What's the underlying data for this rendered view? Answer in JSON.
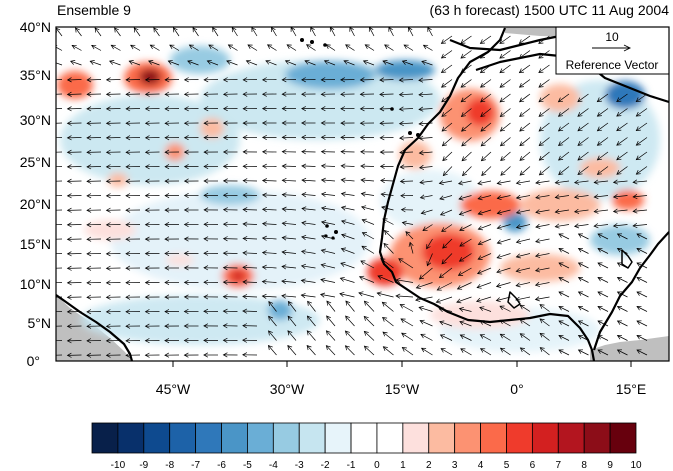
{
  "header": {
    "left_title": "Ensemble 9",
    "right_title": "(63 h forecast) 1500 UTC 11 Aug 2004"
  },
  "reference_vector": {
    "magnitude": "10",
    "label": "Reference Vector"
  },
  "map": {
    "lat_labels": [
      "40°N",
      "35°N",
      "30°N",
      "25°N",
      "20°N",
      "15°N",
      "10°N",
      "5°N",
      "0°"
    ],
    "lon_labels": [
      "45°W",
      "30°W",
      "15°W",
      "0°",
      "15°E"
    ],
    "colors": {
      "coastline": "#000000",
      "land_mask": "#bfbfbf",
      "vector": "#000000"
    }
  },
  "colorbar": {
    "tick_labels": [
      "-10",
      "-9",
      "-8",
      "-7",
      "-6",
      "-5",
      "-4",
      "-3",
      "-2",
      "-1",
      "0",
      "1",
      "2",
      "3",
      "4",
      "5",
      "6",
      "7",
      "8",
      "9",
      "10"
    ],
    "colors": [
      "#08204a",
      "#08306b",
      "#0e4a8f",
      "#1d62a8",
      "#2f78ba",
      "#4a95c7",
      "#6aaed6",
      "#97cbe2",
      "#c6e5f0",
      "#e7f4fa",
      "#ffffff",
      "#ffffff",
      "#fde0dd",
      "#fcbba1",
      "#fc9272",
      "#fb6a4a",
      "#ef3b2c",
      "#d32020",
      "#b3151f",
      "#8c0d18",
      "#67000d"
    ]
  }
}
